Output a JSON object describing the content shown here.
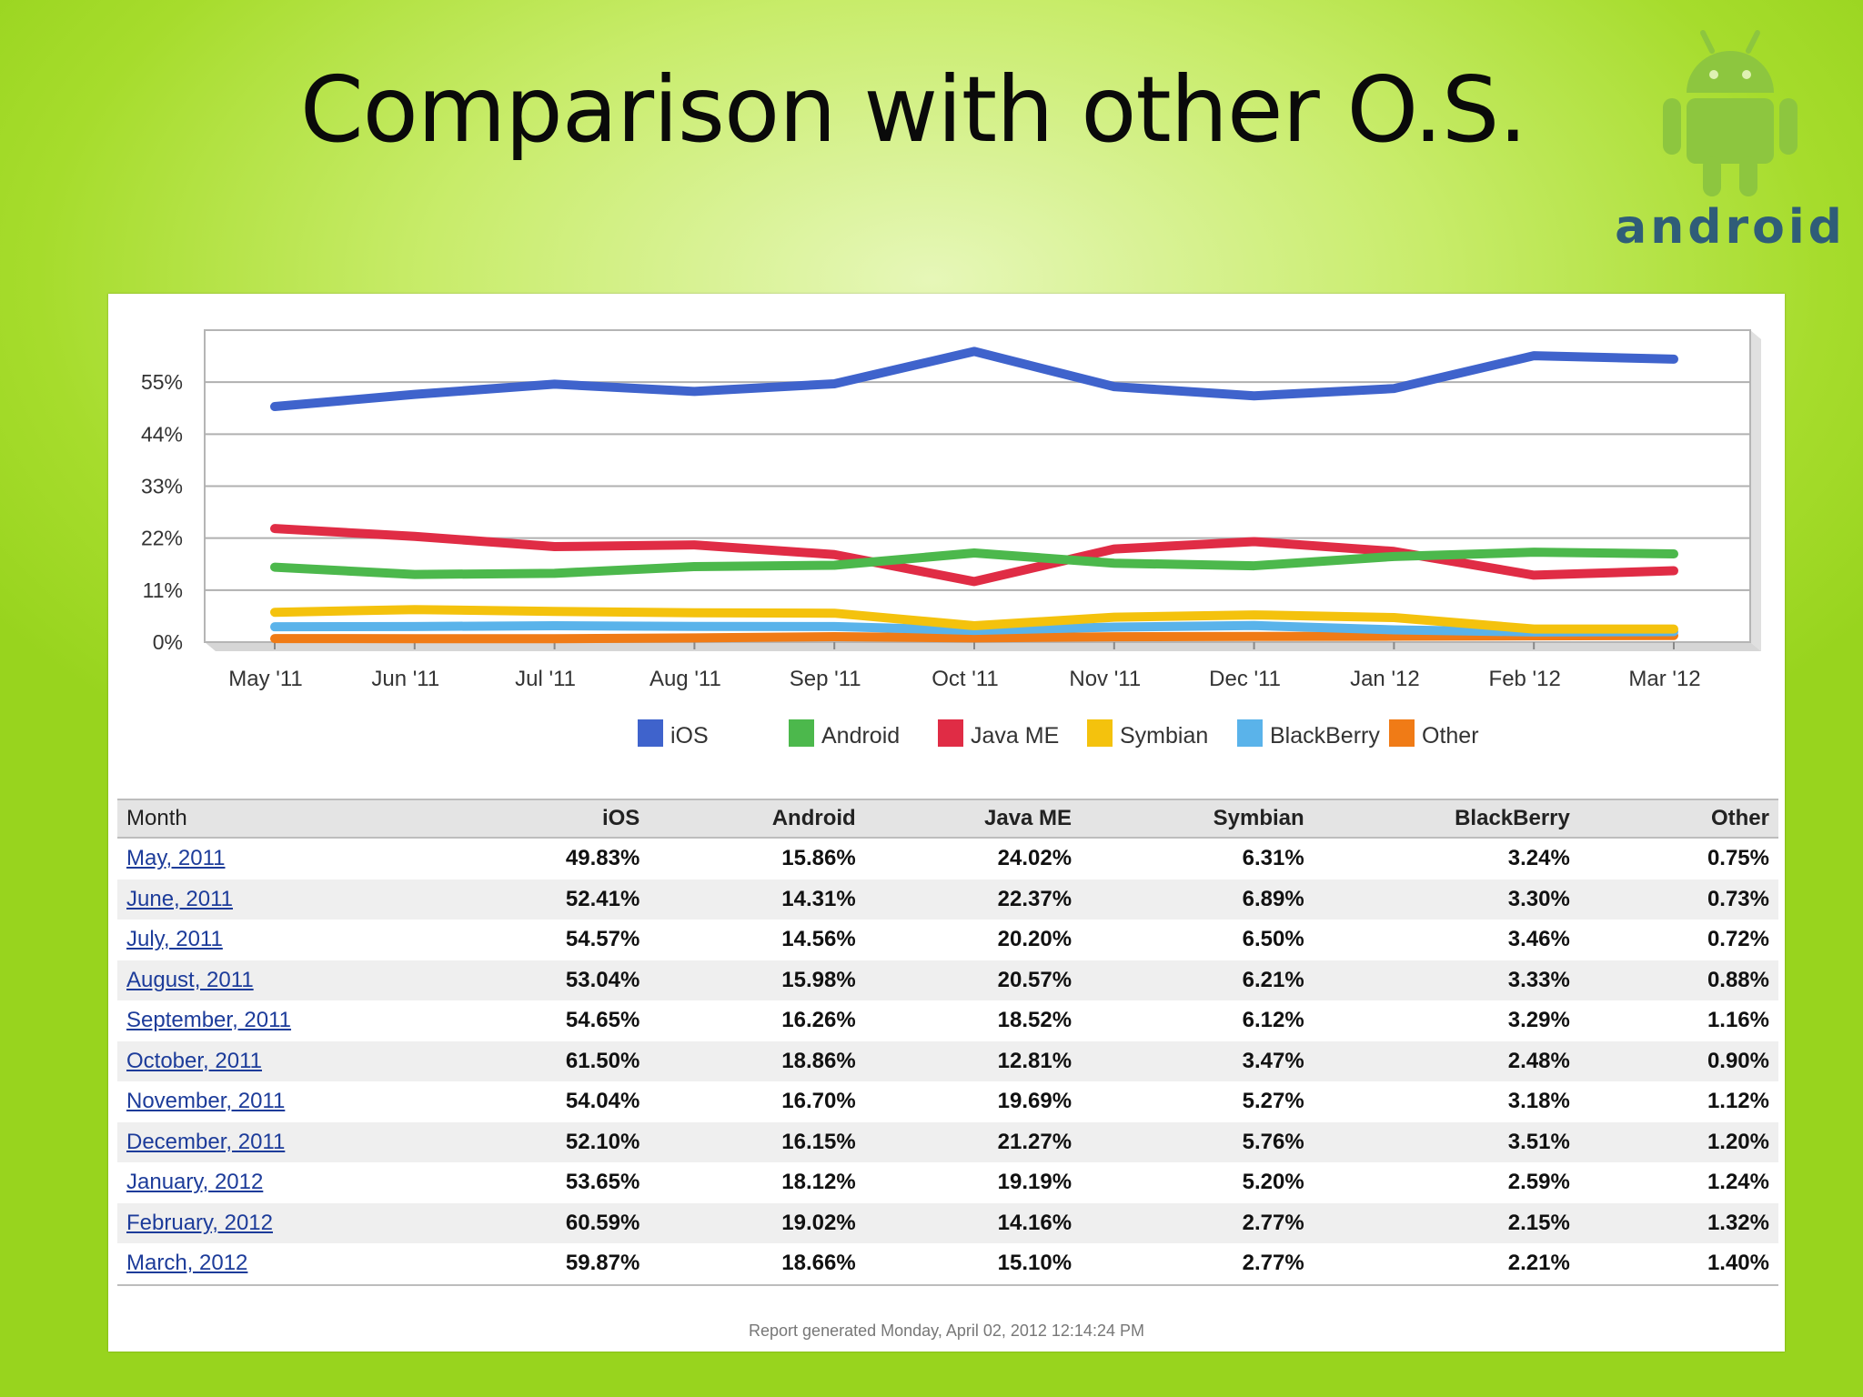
{
  "slide": {
    "title": "Comparison with other O.S."
  },
  "logo": {
    "text": "android",
    "icon": "android-robot-icon",
    "robot_color": "#8dc63f",
    "text_color": "#2f5d78"
  },
  "chart_data": {
    "type": "line",
    "categories": [
      "May '11",
      "Jun '11",
      "Jul '11",
      "Aug '11",
      "Sep '11",
      "Oct '11",
      "Nov '11",
      "Dec '11",
      "Jan '12",
      "Feb '12",
      "Mar '12"
    ],
    "yticks": [
      "0%",
      "11%",
      "22%",
      "33%",
      "44%",
      "55%"
    ],
    "ylim": [
      0,
      66
    ],
    "grid": true,
    "legend_position": "bottom",
    "series": [
      {
        "name": "iOS",
        "color": "#3f63cc",
        "values": [
          49.83,
          52.41,
          54.57,
          53.04,
          54.65,
          61.5,
          54.04,
          52.1,
          53.65,
          60.59,
          59.87
        ]
      },
      {
        "name": "Android",
        "color": "#4cb84c",
        "values": [
          15.86,
          14.31,
          14.56,
          15.98,
          16.26,
          18.86,
          16.7,
          16.15,
          18.12,
          19.02,
          18.66
        ]
      },
      {
        "name": "Java ME",
        "color": "#e02c45",
        "values": [
          24.02,
          22.37,
          20.2,
          20.57,
          18.52,
          12.81,
          19.69,
          21.27,
          19.19,
          14.16,
          15.1
        ]
      },
      {
        "name": "Symbian",
        "color": "#f4c20d",
        "values": [
          6.31,
          6.89,
          6.5,
          6.21,
          6.12,
          3.47,
          5.27,
          5.76,
          5.2,
          2.77,
          2.77
        ]
      },
      {
        "name": "BlackBerry",
        "color": "#5ab3ea",
        "values": [
          3.24,
          3.3,
          3.46,
          3.33,
          3.29,
          2.48,
          3.18,
          3.51,
          2.59,
          2.15,
          2.21
        ]
      },
      {
        "name": "Other",
        "color": "#f07b16",
        "values": [
          0.75,
          0.73,
          0.72,
          0.88,
          1.16,
          0.9,
          1.12,
          1.2,
          1.24,
          1.32,
          1.4
        ]
      }
    ]
  },
  "table": {
    "headers": [
      "Month",
      "iOS",
      "Android",
      "Java ME",
      "Symbian",
      "BlackBerry",
      "Other"
    ],
    "rows": [
      [
        "May, 2011",
        "49.83%",
        "15.86%",
        "24.02%",
        "6.31%",
        "3.24%",
        "0.75%"
      ],
      [
        "June, 2011",
        "52.41%",
        "14.31%",
        "22.37%",
        "6.89%",
        "3.30%",
        "0.73%"
      ],
      [
        "July, 2011",
        "54.57%",
        "14.56%",
        "20.20%",
        "6.50%",
        "3.46%",
        "0.72%"
      ],
      [
        "August, 2011",
        "53.04%",
        "15.98%",
        "20.57%",
        "6.21%",
        "3.33%",
        "0.88%"
      ],
      [
        "September, 2011",
        "54.65%",
        "16.26%",
        "18.52%",
        "6.12%",
        "3.29%",
        "1.16%"
      ],
      [
        "October, 2011",
        "61.50%",
        "18.86%",
        "12.81%",
        "3.47%",
        "2.48%",
        "0.90%"
      ],
      [
        "November, 2011",
        "54.04%",
        "16.70%",
        "19.69%",
        "5.27%",
        "3.18%",
        "1.12%"
      ],
      [
        "December, 2011",
        "52.10%",
        "16.15%",
        "21.27%",
        "5.76%",
        "3.51%",
        "1.20%"
      ],
      [
        "January, 2012",
        "53.65%",
        "18.12%",
        "19.19%",
        "5.20%",
        "2.59%",
        "1.24%"
      ],
      [
        "February, 2012",
        "60.59%",
        "19.02%",
        "14.16%",
        "2.77%",
        "2.15%",
        "1.32%"
      ],
      [
        "March, 2012",
        "59.87%",
        "18.66%",
        "15.10%",
        "2.77%",
        "2.21%",
        "1.40%"
      ]
    ]
  },
  "footer": {
    "text": "Report generated Monday, April 02, 2012 12:14:24 PM"
  }
}
